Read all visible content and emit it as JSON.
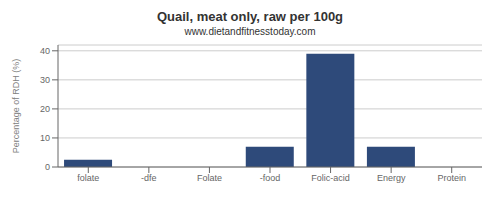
{
  "chart_data": {
    "type": "bar",
    "title": "Quail, meat only, raw per 100g",
    "subtitle": "www.dietandfitnesstoday.com",
    "categories": [
      "folate",
      "-dfe",
      "Folate",
      "-food",
      "Folic-acid",
      "Energy",
      "Protein"
    ],
    "values": [
      2.5,
      0,
      0,
      7.0,
      39.0,
      7.0,
      0
    ],
    "color": "#2e4a7a",
    "ylabel": "Percentage of RDH (%)",
    "ylim": [
      0,
      42
    ],
    "yticks": [
      0,
      10,
      20,
      30,
      40
    ],
    "grid": true
  }
}
